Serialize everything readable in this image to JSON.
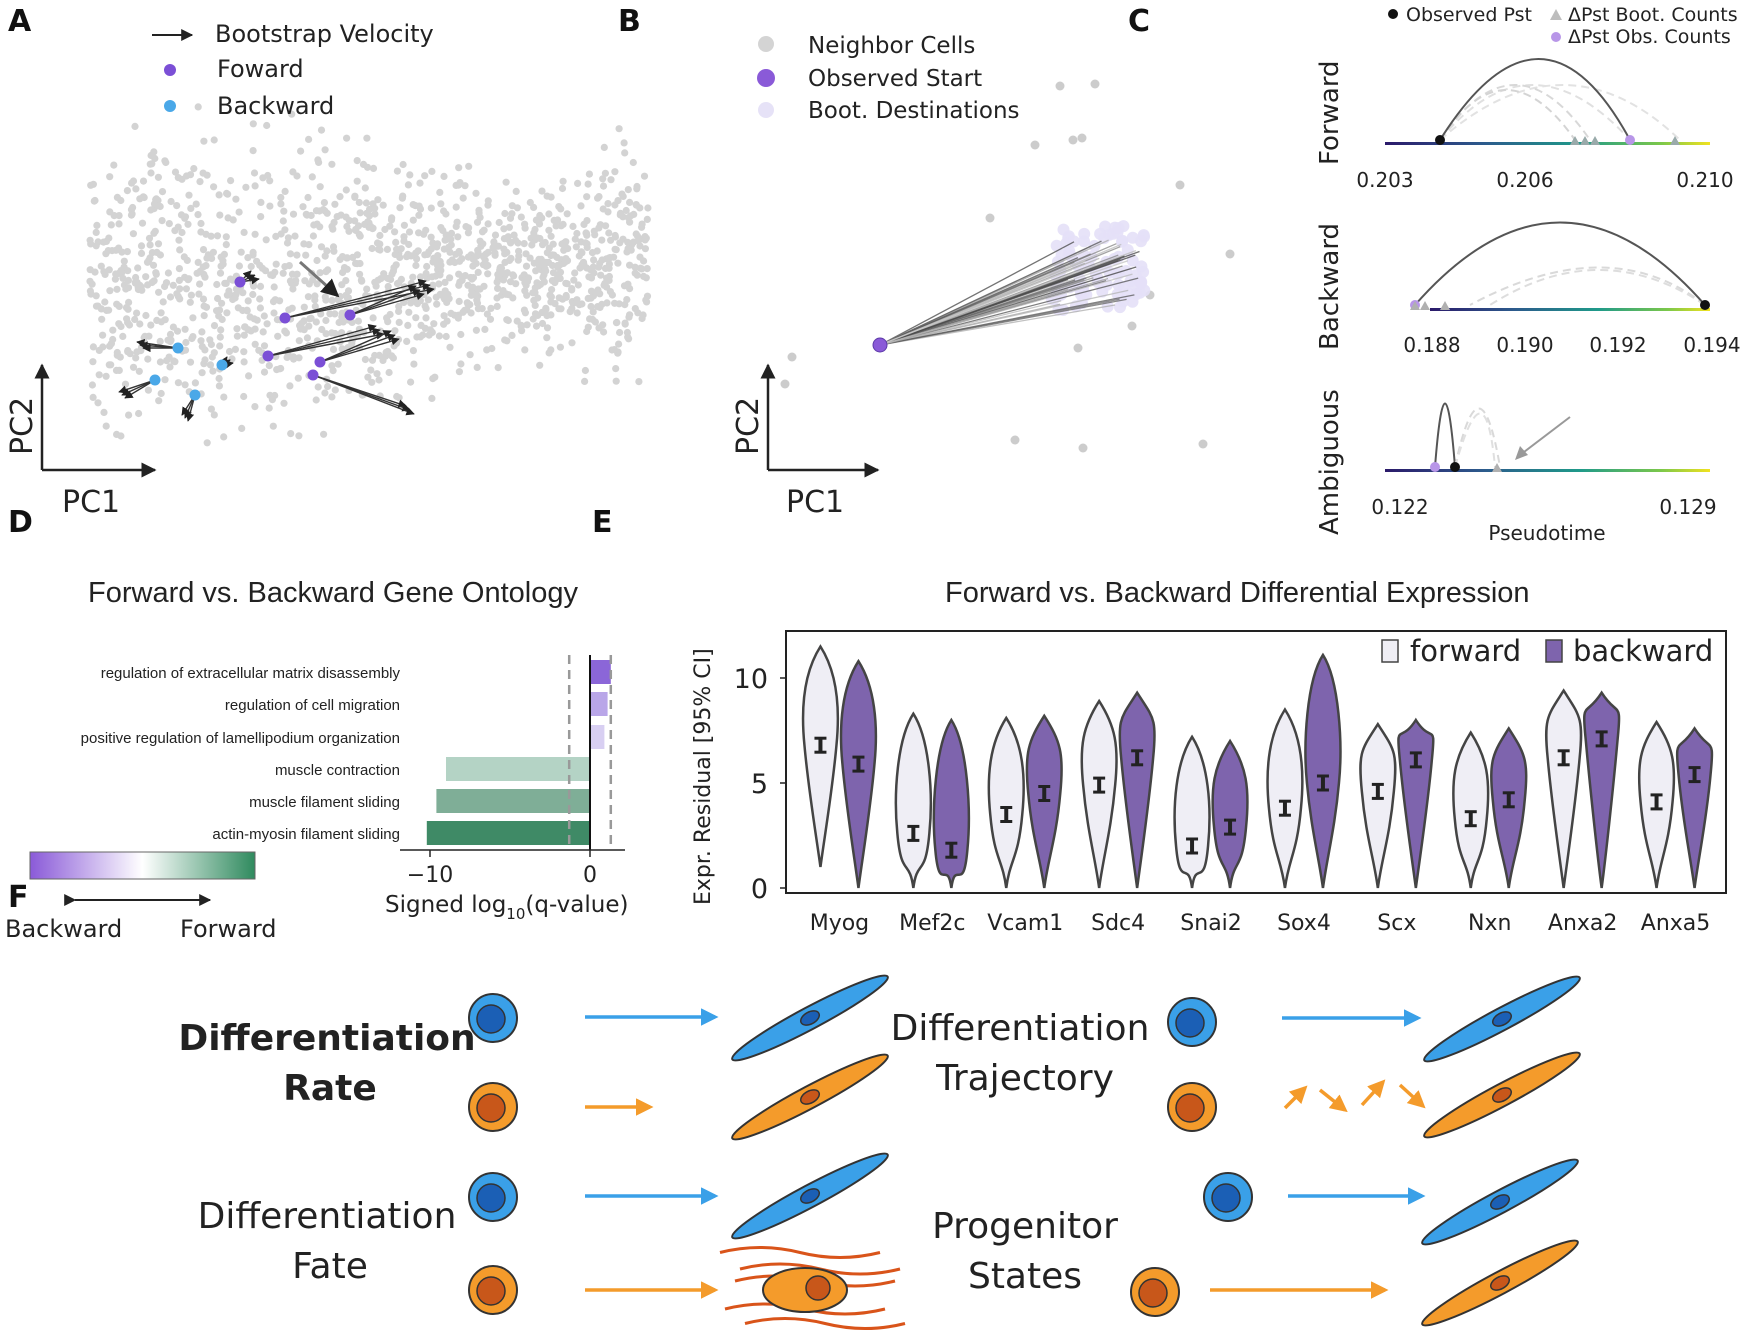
{
  "panels": {
    "A": {
      "letter": "A",
      "legend": [
        {
          "label": "Bootstrap Velocity",
          "marker": "arrow"
        },
        {
          "label": "Foward",
          "marker": "dot",
          "color": "#7b4fd6"
        },
        {
          "label": "Backward",
          "marker": "dot",
          "color": "#4aa8e8"
        }
      ],
      "xlabel": "PC1",
      "ylabel": "PC2"
    },
    "B": {
      "letter": "B",
      "legend": [
        {
          "label": "Neighbor Cells",
          "color": "#cccccc"
        },
        {
          "label": "Observed Start",
          "color": "#8a5ad8"
        },
        {
          "label": "Boot. Destinations",
          "color": "#e2ddf6"
        }
      ],
      "xlabel": "PC1",
      "ylabel": "PC2"
    },
    "C": {
      "letter": "C",
      "legend": [
        {
          "label": "Observed Pst",
          "marker": "black-dot"
        },
        {
          "label": "ΔPst Boot. Counts",
          "marker": "gray-triangle"
        },
        {
          "label": "ΔPst Obs.  Counts",
          "marker": "purple-dot"
        }
      ],
      "rows": [
        {
          "label": "Forward",
          "ticks": [
            "0.203",
            "0.206",
            "0.210"
          ]
        },
        {
          "label": "Backward",
          "ticks": [
            "0.188",
            "0.190",
            "0.192",
            "0.194"
          ]
        },
        {
          "label": "Ambiguous",
          "ticks": [
            "0.122",
            "0.129"
          ]
        }
      ],
      "xlabel": "Pseudotime"
    },
    "D": {
      "letter": "D",
      "title": "Forward vs. Backward Gene Ontology",
      "colorbar_left": "Backward",
      "colorbar_right": "Forward",
      "xlabel_main": "Signed log",
      "xlabel_sub": "10",
      "xlabel_tail": "(q-value)",
      "xticks": [
        "−10",
        "0"
      ]
    },
    "E": {
      "letter": "E",
      "title": "Forward vs. Backward Differential Expression",
      "ylabel": "Expr. Residual [95% CI]",
      "yticks": [
        "0",
        "5",
        "10"
      ],
      "legend": [
        {
          "label": "forward",
          "color": "#efeef5"
        },
        {
          "label": "backward",
          "color": "#7e64ad"
        }
      ]
    },
    "F": {
      "letter": "F",
      "quadrants": [
        {
          "line1": "Differentiation",
          "line2": "Rate"
        },
        {
          "line1": "Differentiation",
          "line2": "Trajectory"
        },
        {
          "line1": "Differentiation",
          "line2": "Fate"
        },
        {
          "line1": "Progenitor",
          "line2": "States"
        }
      ],
      "colors": {
        "blue": "#3aa0e8",
        "orange": "#f49b2b",
        "fate_fiber": "#d9541a"
      }
    }
  },
  "chart_data": [
    {
      "type": "bar",
      "title": "Forward vs. Backward Gene Ontology",
      "xlabel": "Signed log10(q-value)",
      "categories": [
        "regulation of extracellular matrix disassembly",
        "regulation of cell migration",
        "positive regulation of lamellipodium organization",
        "muscle contraction",
        "muscle filament sliding",
        "actin-myosin filament sliding"
      ],
      "values": [
        1.3,
        1.1,
        0.9,
        -9.0,
        -9.6,
        -10.2
      ],
      "colors": [
        "#8b66d8",
        "#b9a6e8",
        "#d8cff2",
        "#b4d3c5",
        "#7fae97",
        "#3f8a66"
      ],
      "xlim": [
        -12,
        2
      ],
      "threshold": [
        -1.3,
        1.3
      ]
    },
    {
      "type": "violin",
      "title": "Forward vs. Backward Differential Expression",
      "ylabel": "Expr. Residual [95% CI]",
      "ylim": [
        0,
        12
      ],
      "categories": [
        "Myog",
        "Mef2c",
        "Vcam1",
        "Sdc4",
        "Snai2",
        "Sox4",
        "Scx",
        "Nxn",
        "Anxa2",
        "Anxa5"
      ],
      "series": [
        {
          "name": "forward",
          "medians": [
            6.8,
            2.6,
            3.5,
            4.9,
            2.0,
            3.8,
            4.6,
            3.3,
            6.2,
            4.1
          ],
          "max": [
            11.5,
            8.3,
            8.1,
            8.9,
            7.2,
            8.5,
            7.8,
            7.4,
            9.4,
            7.9
          ],
          "min": [
            1.0,
            0.0,
            0.0,
            0.0,
            0.0,
            0.0,
            0.0,
            0.0,
            0.0,
            0.0
          ]
        },
        {
          "name": "backward",
          "medians": [
            5.9,
            1.8,
            4.5,
            6.2,
            2.9,
            5.0,
            6.1,
            4.2,
            7.1,
            5.4
          ],
          "max": [
            10.8,
            8.0,
            8.2,
            9.3,
            7.0,
            11.1,
            8.0,
            7.6,
            9.3,
            7.6
          ],
          "min": [
            0.0,
            0.0,
            0.0,
            0.0,
            0.0,
            0.0,
            0.0,
            0.0,
            0.0,
            0.0
          ]
        }
      ]
    }
  ]
}
